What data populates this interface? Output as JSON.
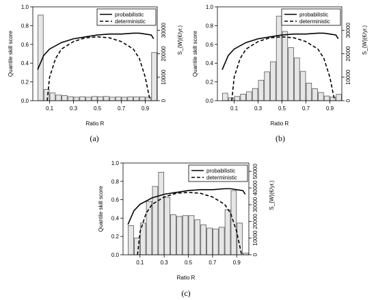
{
  "chart_data": [
    {
      "type": "bar",
      "caption": "(a)",
      "xlabel": "Ratio R",
      "ylabel": "Quantile skill score",
      "ylabel2": "S_{W}(€/yr.)",
      "xlim": [
        0,
        1
      ],
      "ylim": [
        0,
        1.0
      ],
      "y2lim": [
        0,
        40000
      ],
      "xticks": [
        "0.1",
        "0.3",
        "0.5",
        "0.7",
        "0.9"
      ],
      "yticks": [
        "0.0",
        "0.2",
        "0.4",
        "0.6",
        "0.8",
        "1.0"
      ],
      "y2ticks": [
        "0",
        "10000",
        "20000",
        "30000"
      ],
      "legend": {
        "position": "top-right",
        "entries": [
          "probabilistic",
          "deterministic"
        ]
      },
      "bins": [
        0.0,
        0.05,
        0.1,
        0.15,
        0.2,
        0.25,
        0.3,
        0.35,
        0.4,
        0.45,
        0.5,
        0.55,
        0.6,
        0.65,
        0.7,
        0.75,
        0.8,
        0.85,
        0.9,
        0.95
      ],
      "bin_width": 0.05,
      "hist_values": [
        36500,
        4800,
        3300,
        2400,
        2200,
        1700,
        1500,
        1700,
        1500,
        1800,
        1700,
        1800,
        1500,
        1600,
        1500,
        1600,
        1600,
        1600,
        1500,
        20500
      ],
      "series": [
        {
          "name": "probabilistic",
          "style": "solid",
          "x": [
            0.0,
            0.05,
            0.1,
            0.2,
            0.3,
            0.4,
            0.5,
            0.6,
            0.7,
            0.8,
            0.85,
            0.9,
            0.95,
            0.97
          ],
          "y": [
            0.33,
            0.48,
            0.55,
            0.62,
            0.66,
            0.68,
            0.7,
            0.71,
            0.71,
            0.72,
            0.72,
            0.71,
            0.7,
            0.66
          ]
        },
        {
          "name": "deterministic",
          "style": "dashed",
          "x": [
            0.08,
            0.1,
            0.15,
            0.2,
            0.3,
            0.4,
            0.5,
            0.6,
            0.7,
            0.8,
            0.85,
            0.9,
            0.94
          ],
          "y": [
            0.0,
            0.25,
            0.45,
            0.55,
            0.63,
            0.67,
            0.68,
            0.67,
            0.63,
            0.55,
            0.45,
            0.25,
            0.0
          ]
        }
      ]
    },
    {
      "type": "bar",
      "caption": "(b)",
      "xlabel": "Ratio R",
      "ylabel": "Quantile skill score",
      "ylabel2": "S_{W}(€/yr.)",
      "xlim": [
        0,
        1
      ],
      "ylim": [
        0,
        1.0
      ],
      "y2lim": [
        0,
        40000
      ],
      "xticks": [
        "0.1",
        "0.3",
        "0.5",
        "0.7",
        "0.9"
      ],
      "yticks": [
        "0.0",
        "0.2",
        "0.4",
        "0.6",
        "0.8",
        "1.0"
      ],
      "y2ticks": [
        "0",
        "10000",
        "20000",
        "30000"
      ],
      "legend": {
        "position": "top-right",
        "entries": [
          "probabilistic",
          "deterministic"
        ]
      },
      "bins": [
        0.0,
        0.05,
        0.1,
        0.15,
        0.2,
        0.25,
        0.3,
        0.35,
        0.4,
        0.45,
        0.5,
        0.55,
        0.6,
        0.65,
        0.7,
        0.75,
        0.8,
        0.85,
        0.9,
        0.95
      ],
      "bin_width": 0.05,
      "hist_values": [
        3200,
        1200,
        1800,
        2800,
        3800,
        5200,
        8700,
        12300,
        16600,
        36000,
        29500,
        22600,
        18200,
        12500,
        7500,
        5100,
        3500,
        2000,
        1500,
        2700
      ],
      "series": [
        {
          "name": "probabilistic",
          "style": "solid",
          "x": [
            0.0,
            0.05,
            0.1,
            0.2,
            0.3,
            0.4,
            0.5,
            0.6,
            0.7,
            0.8,
            0.85,
            0.9,
            0.95,
            0.97
          ],
          "y": [
            0.33,
            0.48,
            0.55,
            0.62,
            0.66,
            0.68,
            0.7,
            0.71,
            0.71,
            0.72,
            0.72,
            0.71,
            0.7,
            0.66
          ]
        },
        {
          "name": "deterministic",
          "style": "dashed",
          "x": [
            0.08,
            0.1,
            0.15,
            0.2,
            0.3,
            0.4,
            0.5,
            0.6,
            0.7,
            0.8,
            0.85,
            0.9,
            0.94
          ],
          "y": [
            0.0,
            0.25,
            0.45,
            0.55,
            0.63,
            0.67,
            0.68,
            0.67,
            0.63,
            0.55,
            0.45,
            0.25,
            0.0
          ]
        }
      ]
    },
    {
      "type": "bar",
      "caption": "(c)",
      "xlabel": "Ratio R",
      "ylabel": "Quantile skill score",
      "ylabel2": "S_{W}(€/yr.)",
      "xlim": [
        0,
        1
      ],
      "ylim": [
        0,
        1.0
      ],
      "y2lim": [
        0,
        55000
      ],
      "xticks": [
        "0.1",
        "0.3",
        "0.5",
        "0.7",
        "0.9"
      ],
      "yticks": [
        "0.0",
        "0.2",
        "0.4",
        "0.6",
        "0.8",
        "1.0"
      ],
      "y2ticks": [
        "0",
        "10000",
        "20000",
        "30000",
        "40000",
        "50000"
      ],
      "legend": {
        "position": "top-right",
        "entries": [
          "probabilistic",
          "deterministic"
        ]
      },
      "bins": [
        0.0,
        0.05,
        0.1,
        0.15,
        0.2,
        0.25,
        0.3,
        0.35,
        0.4,
        0.45,
        0.5,
        0.55,
        0.6,
        0.65,
        0.7,
        0.75,
        0.8,
        0.85,
        0.9,
        0.95
      ],
      "bin_width": 0.05,
      "hist_values": [
        17500,
        10000,
        19000,
        32000,
        41000,
        49500,
        34500,
        24000,
        23000,
        23500,
        23500,
        21000,
        18000,
        16000,
        15500,
        16500,
        27000,
        38500,
        19000,
        1000
      ],
      "series": [
        {
          "name": "probabilistic",
          "style": "solid",
          "x": [
            0.0,
            0.05,
            0.1,
            0.2,
            0.3,
            0.4,
            0.5,
            0.6,
            0.7,
            0.8,
            0.85,
            0.9,
            0.95,
            0.97
          ],
          "y": [
            0.33,
            0.48,
            0.55,
            0.62,
            0.66,
            0.68,
            0.7,
            0.71,
            0.71,
            0.72,
            0.72,
            0.71,
            0.7,
            0.66
          ]
        },
        {
          "name": "deterministic",
          "style": "dashed",
          "x": [
            0.08,
            0.1,
            0.15,
            0.2,
            0.3,
            0.4,
            0.5,
            0.6,
            0.7,
            0.8,
            0.85,
            0.9,
            0.94
          ],
          "y": [
            0.0,
            0.25,
            0.45,
            0.55,
            0.63,
            0.67,
            0.68,
            0.67,
            0.63,
            0.55,
            0.45,
            0.25,
            0.0
          ]
        }
      ]
    }
  ]
}
